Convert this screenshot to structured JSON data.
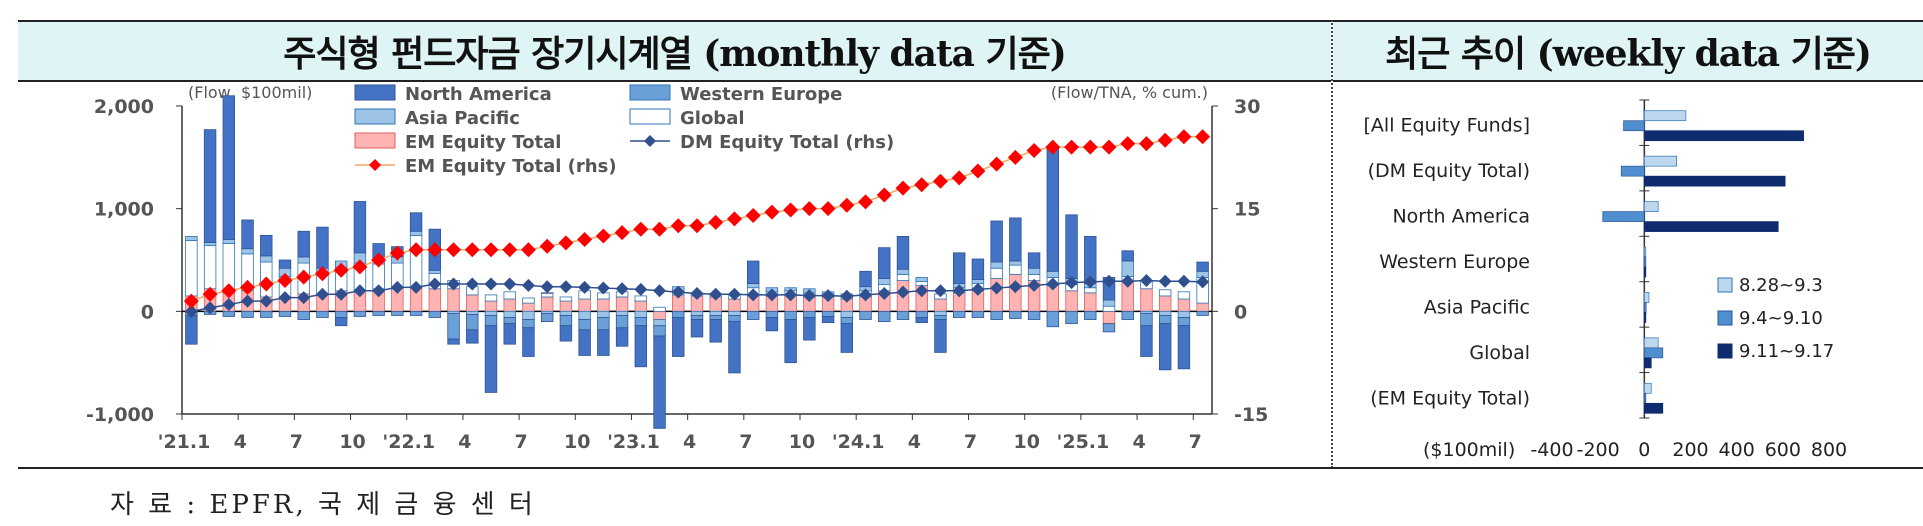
{
  "header": {
    "left_title": "주식형 펀드자금 장기시계열 (monthly data 기준)",
    "right_title": "최근 추이 (weekly data 기준)"
  },
  "source": "자 료 : EPFR, 국 제 금 융 센 터",
  "colors": {
    "north_america": "#4472c4",
    "western_europe": "#6a9fd8",
    "asia_pacific": "#9dc3e6",
    "global": "#ffffff",
    "em_equity_total": "#ffb3b3",
    "dm_line": "#2f4f8f",
    "em_line": "#ff0000",
    "weekly_1": "#bdd7ee",
    "weekly_2": "#4f8fd0",
    "weekly_3": "#0e2c6e"
  },
  "chart_data": [
    {
      "type": "bar",
      "stacked": true,
      "left_axis_label": "(Flow, $100mil)",
      "right_axis_label": "(Flow/TNA, % cum.)",
      "ylim": [
        -1000,
        2000
      ],
      "yticks": [
        "2,000",
        "1,000",
        "0",
        "-1,000"
      ],
      "y2lim": [
        -15,
        30
      ],
      "y2ticks": [
        "30",
        "15",
        "0",
        "-15"
      ],
      "xtick_labels": [
        "'21.1",
        "4",
        "7",
        "10",
        "'22.1",
        "4",
        "7",
        "10",
        "'23.1",
        "4",
        "7",
        "10",
        "'24.1",
        "4",
        "7",
        "10",
        "'25.1",
        "4",
        "7"
      ],
      "legend": [
        "North America",
        "Western Europe",
        "Asia Pacific",
        "Global",
        "EM Equity Total",
        "DM Equity Total (rhs)",
        "EM Equity Total (rhs)"
      ],
      "series": [
        {
          "name": "North America",
          "values": [
            -280,
            1100,
            1400,
            280,
            200,
            80,
            250,
            400,
            -80,
            500,
            140,
            100,
            180,
            400,
            -50,
            -130,
            -650,
            -200,
            -280,
            0,
            -150,
            -250,
            -250,
            -180,
            -400,
            -900,
            -380,
            -170,
            -220,
            -500,
            220,
            -130,
            -420,
            -220,
            -60,
            -280,
            150,
            300,
            320,
            -50,
            -320,
            300,
            200,
            400,
            420,
            150,
            1200,
            620,
            460,
            220,
            100,
            -300,
            -450,
            -420,
            90
          ]
        },
        {
          "name": "Western Europe",
          "values": [
            -40,
            -30,
            -50,
            -60,
            -60,
            -50,
            -80,
            -60,
            -60,
            -50,
            -40,
            -40,
            -40,
            -60,
            -250,
            -150,
            -100,
            -60,
            -80,
            -80,
            -100,
            -100,
            -120,
            -120,
            -80,
            -100,
            -60,
            -40,
            -40,
            -60,
            -80,
            -60,
            -80,
            -60,
            -50,
            -60,
            -80,
            -100,
            -80,
            -60,
            -40,
            -60,
            -60,
            -80,
            -70,
            -80,
            -150,
            -120,
            -80,
            -80,
            -80,
            -120,
            -80,
            -80,
            -40
          ]
        },
        {
          "name": "Asia Pacific",
          "values": [
            40,
            30,
            40,
            50,
            60,
            80,
            60,
            40,
            60,
            100,
            60,
            60,
            40,
            30,
            -20,
            -30,
            -40,
            -60,
            -80,
            -20,
            -40,
            -80,
            -60,
            -40,
            -60,
            -60,
            40,
            -40,
            -40,
            -40,
            40,
            40,
            30,
            40,
            20,
            -60,
            40,
            60,
            50,
            40,
            -40,
            40,
            40,
            60,
            40,
            60,
            60,
            60,
            40,
            60,
            150,
            -20,
            -40,
            -60,
            60
          ]
        },
        {
          "name": "Global",
          "values": [
            540,
            420,
            480,
            360,
            340,
            220,
            300,
            220,
            230,
            270,
            240,
            230,
            500,
            150,
            80,
            80,
            60,
            70,
            50,
            40,
            40,
            80,
            60,
            50,
            50,
            40,
            40,
            30,
            30,
            40,
            80,
            40,
            50,
            40,
            30,
            50,
            60,
            60,
            60,
            40,
            50,
            50,
            70,
            100,
            90,
            60,
            80,
            60,
            50,
            50,
            40,
            80,
            60,
            70,
            250
          ]
        },
        {
          "name": "EM Equity Total",
          "values": [
            150,
            220,
            180,
            200,
            140,
            120,
            170,
            160,
            200,
            200,
            220,
            240,
            240,
            220,
            220,
            160,
            100,
            120,
            80,
            140,
            100,
            120,
            120,
            140,
            100,
            -80,
            160,
            150,
            140,
            120,
            150,
            150,
            150,
            140,
            140,
            120,
            140,
            200,
            300,
            250,
            120,
            180,
            200,
            320,
            360,
            300,
            250,
            200,
            180,
            -120,
            300,
            220,
            150,
            120,
            80
          ]
        },
        {
          "name": "DM Equity Total (rhs)",
          "axis": "right",
          "values": [
            0,
            0.5,
            1.0,
            1.5,
            1.5,
            2.0,
            2.0,
            2.5,
            2.5,
            3.0,
            3.0,
            3.5,
            3.5,
            4.0,
            4.0,
            4.0,
            4.0,
            4.0,
            3.8,
            3.6,
            3.6,
            3.5,
            3.4,
            3.3,
            3.2,
            3.0,
            2.8,
            2.6,
            2.5,
            2.5,
            2.4,
            2.4,
            2.4,
            2.3,
            2.3,
            2.2,
            2.4,
            2.6,
            2.8,
            3.0,
            3.0,
            3.0,
            3.2,
            3.4,
            3.6,
            3.8,
            4.0,
            4.2,
            4.3,
            4.4,
            4.4,
            4.5,
            4.4,
            4.4,
            4.3
          ]
        },
        {
          "name": "EM Equity Total (rhs)",
          "axis": "right",
          "values": [
            1.5,
            2.5,
            3.0,
            3.5,
            4.0,
            4.5,
            5.0,
            5.5,
            6.0,
            6.5,
            7.5,
            8.5,
            9.0,
            9.0,
            9.0,
            9.0,
            9.0,
            9.0,
            9.0,
            9.5,
            10.0,
            10.5,
            11.0,
            11.5,
            12.0,
            12.0,
            12.5,
            12.5,
            13.0,
            13.5,
            14.0,
            14.5,
            14.8,
            15.0,
            15.0,
            15.5,
            16.0,
            17.0,
            18.0,
            18.5,
            19.0,
            19.5,
            20.5,
            21.5,
            22.5,
            23.5,
            24.0,
            24.0,
            24.0,
            24.0,
            24.5,
            24.5,
            25.0,
            25.5,
            25.5
          ]
        }
      ]
    },
    {
      "type": "bar",
      "orientation": "horizontal",
      "xlabel": "($100mil)",
      "xlim": [
        -400,
        800
      ],
      "xticks": [
        "-400",
        "-200",
        "0",
        "200",
        "400",
        "600",
        "800"
      ],
      "categories": [
        "[All Equity Funds]",
        "(DM Equity Total)",
        "North America",
        "Western Europe",
        "Asia Pacific",
        "Global",
        "(EM Equity Total)"
      ],
      "series": [
        {
          "name": "8.28~9.3",
          "values": [
            180,
            140,
            60,
            4,
            20,
            60,
            30
          ]
        },
        {
          "name": "9.4~9.10",
          "values": [
            -90,
            -100,
            -180,
            4,
            8,
            80,
            5
          ]
        },
        {
          "name": "9.11~9.17",
          "values": [
            690,
            610,
            580,
            5,
            4,
            30,
            80
          ]
        }
      ],
      "legend_position": "right"
    }
  ]
}
